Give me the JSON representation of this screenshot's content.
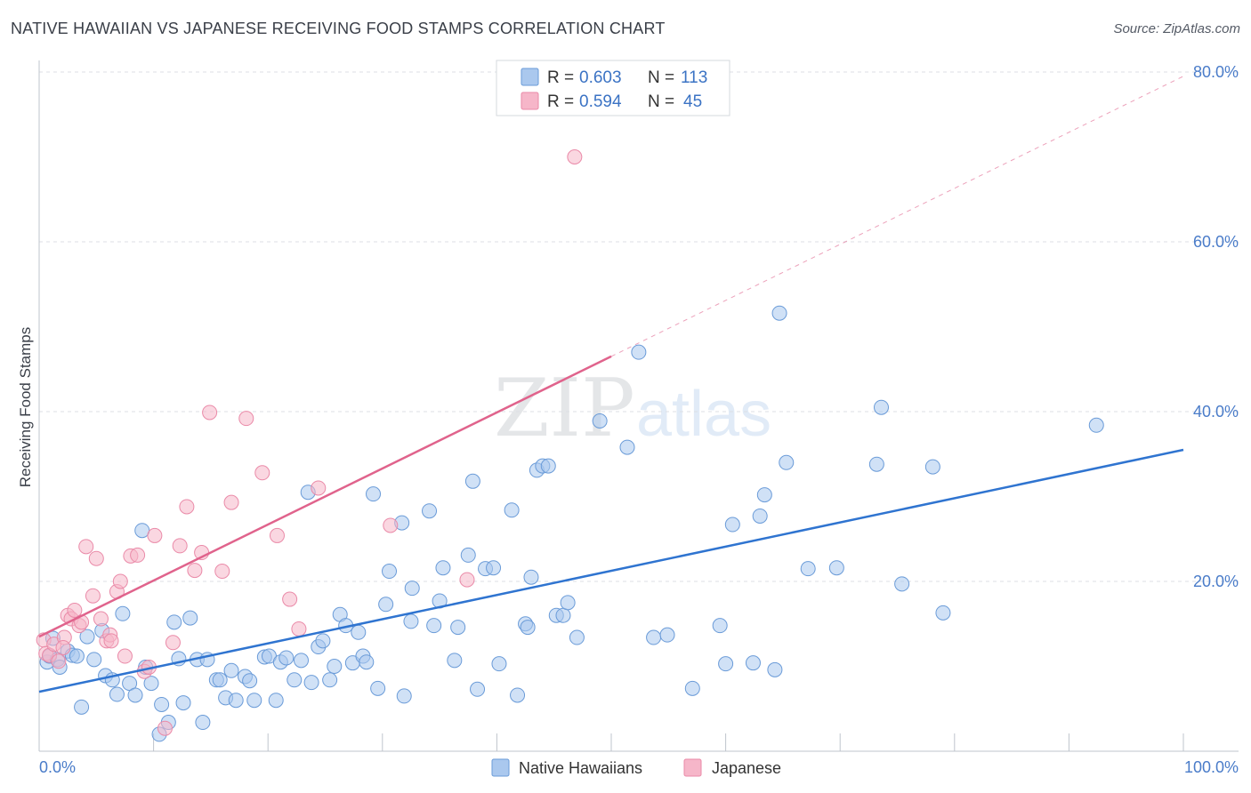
{
  "header": {
    "title": "NATIVE HAWAIIAN VS JAPANESE RECEIVING FOOD STAMPS CORRELATION CHART",
    "source": "Source: ZipAtlas.com"
  },
  "watermark": {
    "zip": "ZIP",
    "atlas": "atlas"
  },
  "legend_top": {
    "rows": [
      {
        "r_label": "R =",
        "r_value": "0.603",
        "n_label": "N =",
        "n_value": "113",
        "color": "#aac8ee"
      },
      {
        "r_label": "R =",
        "r_value": "0.594",
        "n_label": "N =",
        "n_value": "45",
        "color": "#f6b6c9"
      }
    ]
  },
  "legend_bottom": {
    "items": [
      {
        "label": "Native Hawaiians",
        "color": "#aac8ee"
      },
      {
        "label": "Japanese",
        "color": "#f6b6c9"
      }
    ]
  },
  "colors": {
    "blue_fill": "#aac8ee",
    "blue_stroke": "#6a9bd8",
    "blue_line": "#2f74d0",
    "pink_fill": "#f6b6c9",
    "pink_stroke": "#ea8aa8",
    "pink_line": "#e0638c"
  },
  "chart_data": {
    "type": "scatter",
    "title": "NATIVE HAWAIIAN VS JAPANESE RECEIVING FOOD STAMPS CORRELATION CHART",
    "xlabel": "",
    "ylabel": "Receiving Food Stamps",
    "xlim": [
      0,
      100
    ],
    "ylim": [
      0,
      82
    ],
    "x_tick_labels": [
      "0.0%",
      "100.0%"
    ],
    "y_ticks": [
      20,
      40,
      60,
      80
    ],
    "y_tick_labels": [
      "20.0%",
      "40.0%",
      "60.0%",
      "80.0%"
    ],
    "grid": "horizontal dashed",
    "legend_position": "top-center",
    "series": [
      {
        "name": "Native Hawaiians",
        "trend": {
          "x": [
            0,
            100
          ],
          "y": [
            7.0,
            35.5
          ],
          "style": "solid"
        },
        "points": [
          [
            0.7,
            10.5
          ],
          [
            0.9,
            11.2
          ],
          [
            1.2,
            13.3
          ],
          [
            1.6,
            10.8
          ],
          [
            1.8,
            9.9
          ],
          [
            2.5,
            11.8
          ],
          [
            2.9,
            11.3
          ],
          [
            3.3,
            11.2
          ],
          [
            3.7,
            5.2
          ],
          [
            4.2,
            13.5
          ],
          [
            4.8,
            10.8
          ],
          [
            5.5,
            14.2
          ],
          [
            5.8,
            8.9
          ],
          [
            6.4,
            8.4
          ],
          [
            6.8,
            6.7
          ],
          [
            7.3,
            16.2
          ],
          [
            7.9,
            8.0
          ],
          [
            8.4,
            6.6
          ],
          [
            9.0,
            26.0
          ],
          [
            9.3,
            9.9
          ],
          [
            9.8,
            8.0
          ],
          [
            10.5,
            2.0
          ],
          [
            10.7,
            5.5
          ],
          [
            11.3,
            3.4
          ],
          [
            11.8,
            15.2
          ],
          [
            12.2,
            10.9
          ],
          [
            12.6,
            5.7
          ],
          [
            13.2,
            15.7
          ],
          [
            13.8,
            10.8
          ],
          [
            14.3,
            3.4
          ],
          [
            14.7,
            10.8
          ],
          [
            15.5,
            8.4
          ],
          [
            15.8,
            8.4
          ],
          [
            16.3,
            6.3
          ],
          [
            16.8,
            9.5
          ],
          [
            17.2,
            6.0
          ],
          [
            18.0,
            8.8
          ],
          [
            18.4,
            8.3
          ],
          [
            18.8,
            6.0
          ],
          [
            19.7,
            11.1
          ],
          [
            20.1,
            11.2
          ],
          [
            20.7,
            6.0
          ],
          [
            21.1,
            10.5
          ],
          [
            21.6,
            11.0
          ],
          [
            22.3,
            8.4
          ],
          [
            22.9,
            10.7
          ],
          [
            23.5,
            30.5
          ],
          [
            23.8,
            8.1
          ],
          [
            24.4,
            12.3
          ],
          [
            24.8,
            13.0
          ],
          [
            25.4,
            8.4
          ],
          [
            25.8,
            10.0
          ],
          [
            26.3,
            16.1
          ],
          [
            26.8,
            14.8
          ],
          [
            27.4,
            10.4
          ],
          [
            27.9,
            14.0
          ],
          [
            28.3,
            11.2
          ],
          [
            28.6,
            10.5
          ],
          [
            29.2,
            30.3
          ],
          [
            29.6,
            7.4
          ],
          [
            30.3,
            17.3
          ],
          [
            30.6,
            21.2
          ],
          [
            31.7,
            26.9
          ],
          [
            31.9,
            6.5
          ],
          [
            32.5,
            15.3
          ],
          [
            32.6,
            19.2
          ],
          [
            34.1,
            28.3
          ],
          [
            34.5,
            14.8
          ],
          [
            35.0,
            17.7
          ],
          [
            35.3,
            21.6
          ],
          [
            36.3,
            10.7
          ],
          [
            36.6,
            14.6
          ],
          [
            37.5,
            23.1
          ],
          [
            37.9,
            31.8
          ],
          [
            38.3,
            7.3
          ],
          [
            39.0,
            21.5
          ],
          [
            39.7,
            21.6
          ],
          [
            40.2,
            10.3
          ],
          [
            41.3,
            28.4
          ],
          [
            41.8,
            6.6
          ],
          [
            42.5,
            15.0
          ],
          [
            42.7,
            14.6
          ],
          [
            43.0,
            20.5
          ],
          [
            43.5,
            33.1
          ],
          [
            44.0,
            33.6
          ],
          [
            44.5,
            33.6
          ],
          [
            45.2,
            16.0
          ],
          [
            45.8,
            16.0
          ],
          [
            46.2,
            17.5
          ],
          [
            47.0,
            13.4
          ],
          [
            49.0,
            38.9
          ],
          [
            51.4,
            35.8
          ],
          [
            52.4,
            47.0
          ],
          [
            53.7,
            13.4
          ],
          [
            54.9,
            13.7
          ],
          [
            57.1,
            7.4
          ],
          [
            59.5,
            14.8
          ],
          [
            60.0,
            10.3
          ],
          [
            60.6,
            26.7
          ],
          [
            62.4,
            10.4
          ],
          [
            63.0,
            27.7
          ],
          [
            63.4,
            30.2
          ],
          [
            64.3,
            9.6
          ],
          [
            64.7,
            51.6
          ],
          [
            65.3,
            34.0
          ],
          [
            67.2,
            21.5
          ],
          [
            69.7,
            21.6
          ],
          [
            73.2,
            33.8
          ],
          [
            73.6,
            40.5
          ],
          [
            75.4,
            19.7
          ],
          [
            78.1,
            33.5
          ],
          [
            79.0,
            16.3
          ],
          [
            92.4,
            38.4
          ]
        ]
      },
      {
        "name": "Japanese",
        "trend": {
          "x": [
            0,
            50
          ],
          "y": [
            13.5,
            46.5
          ],
          "style": "solid",
          "extension": {
            "x": [
              50,
              100
            ],
            "y": [
              46.5,
              79.5
            ],
            "style": "dashed"
          }
        },
        "points": [
          [
            0.4,
            13.1
          ],
          [
            0.6,
            11.5
          ],
          [
            0.9,
            11.3
          ],
          [
            1.3,
            12.6
          ],
          [
            1.7,
            10.6
          ],
          [
            2.2,
            13.4
          ],
          [
            2.5,
            16.0
          ],
          [
            2.8,
            15.6
          ],
          [
            3.1,
            16.6
          ],
          [
            3.5,
            14.8
          ],
          [
            3.7,
            15.2
          ],
          [
            4.1,
            24.1
          ],
          [
            4.7,
            18.3
          ],
          [
            5.0,
            22.7
          ],
          [
            5.4,
            15.6
          ],
          [
            5.9,
            13.0
          ],
          [
            6.2,
            13.7
          ],
          [
            6.8,
            18.8
          ],
          [
            7.1,
            20.0
          ],
          [
            7.5,
            11.2
          ],
          [
            8.0,
            23.0
          ],
          [
            8.6,
            23.1
          ],
          [
            9.2,
            9.4
          ],
          [
            9.6,
            9.9
          ],
          [
            10.1,
            25.4
          ],
          [
            11.0,
            2.7
          ],
          [
            11.7,
            12.8
          ],
          [
            12.3,
            24.2
          ],
          [
            12.9,
            28.8
          ],
          [
            13.6,
            21.3
          ],
          [
            14.2,
            23.4
          ],
          [
            14.9,
            39.9
          ],
          [
            16.0,
            21.2
          ],
          [
            16.8,
            29.3
          ],
          [
            18.1,
            39.2
          ],
          [
            19.5,
            32.8
          ],
          [
            20.8,
            25.4
          ],
          [
            21.9,
            17.9
          ],
          [
            22.7,
            14.4
          ],
          [
            24.4,
            31.0
          ],
          [
            30.7,
            26.6
          ],
          [
            37.4,
            20.2
          ],
          [
            46.8,
            70.0
          ],
          [
            6.3,
            13.0
          ],
          [
            2.1,
            12.2
          ]
        ]
      }
    ]
  }
}
